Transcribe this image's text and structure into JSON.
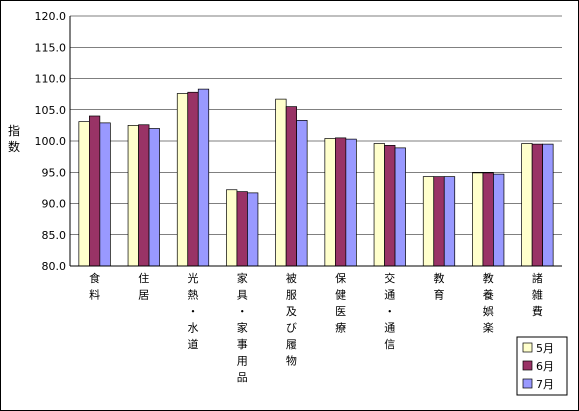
{
  "chart_data": {
    "type": "bar",
    "ylabel": "指数",
    "ylim": [
      80.0,
      120.0
    ],
    "ytick_step": 5.0,
    "yticks": [
      "80.0",
      "85.0",
      "90.0",
      "95.0",
      "100.0",
      "105.0",
      "110.0",
      "115.0",
      "120.0"
    ],
    "grid": true,
    "legend_position": "bottom-right",
    "categories": [
      "食料",
      "住居",
      "光熱・水道",
      "家具・家事用品",
      "被服及び履物",
      "保健医療",
      "交通・通信",
      "教育",
      "教養娯楽",
      "諸雑費"
    ],
    "series": [
      {
        "name": "5月",
        "color": "#ffffcc",
        "values": [
          103.1,
          102.5,
          107.6,
          92.2,
          106.7,
          100.4,
          99.6,
          94.3,
          94.9,
          99.6
        ]
      },
      {
        "name": "6月",
        "color": "#993366",
        "values": [
          104.0,
          102.6,
          107.8,
          91.9,
          105.5,
          100.5,
          99.3,
          94.3,
          94.9,
          99.5
        ]
      },
      {
        "name": "7月",
        "color": "#9999ff",
        "values": [
          102.9,
          102.0,
          108.3,
          91.7,
          103.3,
          100.3,
          98.9,
          94.3,
          94.7,
          99.5
        ]
      }
    ]
  }
}
